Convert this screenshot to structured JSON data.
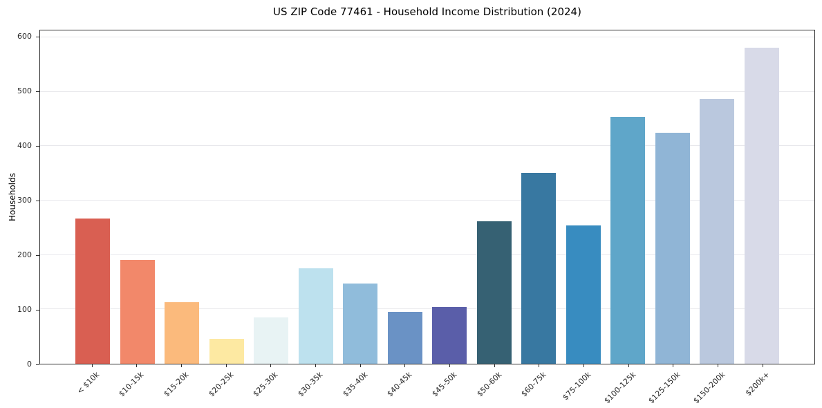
{
  "figure": {
    "title": "US ZIP Code 77461 - Household Income Distribution (2024)"
  },
  "chart_data": {
    "type": "bar",
    "title": "US ZIP Code 77461 - Household Income Distribution (2024)",
    "xlabel": "",
    "ylabel": "Households",
    "ylim": [
      0,
      613
    ],
    "yticks": [
      0,
      100,
      200,
      300,
      400,
      500,
      600
    ],
    "grid": "horizontal",
    "legend": "none",
    "categories": [
      "< $10k",
      "$10-15k",
      "$15-20k",
      "$20-25k",
      "$25-30k",
      "$30-35k",
      "$35-40k",
      "$40-45k",
      "$45-50k",
      "$50-60k",
      "$60-75k",
      "$75-100k",
      "$100-125k",
      "$125-150k",
      "$150-200k",
      "$200k+"
    ],
    "values": [
      267,
      191,
      113,
      46,
      85,
      176,
      147,
      95,
      104,
      262,
      351,
      254,
      454,
      425,
      487,
      581
    ],
    "bar_colors": [
      "#d95f52",
      "#f2886a",
      "#fbba7c",
      "#fde9a2",
      "#e8f3f4",
      "#bde1ee",
      "#90bcdb",
      "#6a92c5",
      "#5a5ea9",
      "#366173",
      "#3878a1",
      "#388cc0",
      "#5fa6c9",
      "#90b5d6",
      "#bac8de",
      "#d8dae8"
    ]
  }
}
